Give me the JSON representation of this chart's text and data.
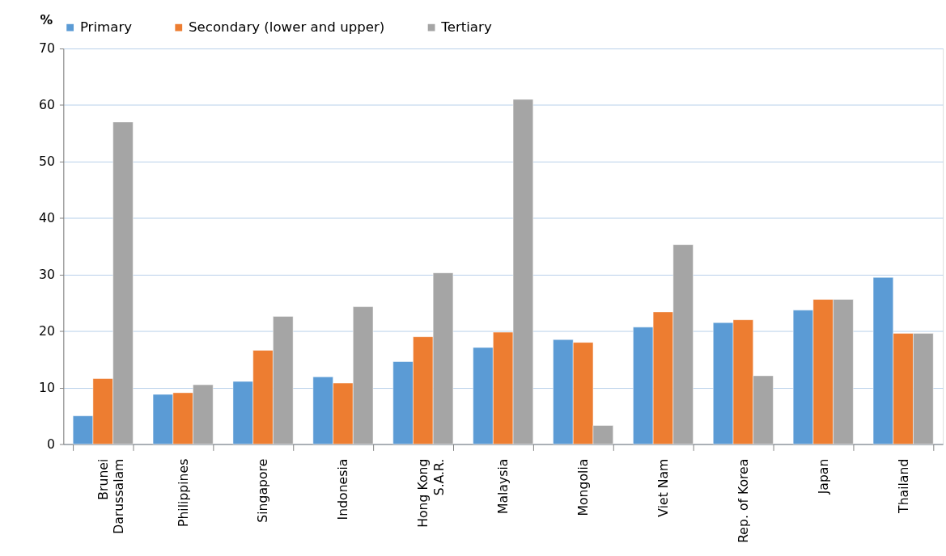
{
  "chart_data": {
    "type": "bar",
    "ylabel": "%",
    "categories": [
      "Brunei\nDarussalam",
      "Philippines",
      "Singapore",
      "Indonesia",
      "Hong Kong\nS.A.R.",
      "Malaysia",
      "Mongolia",
      "Viet Nam",
      "Rep. of Korea",
      "Japan",
      "Thailand"
    ],
    "series": [
      {
        "name": "Primary",
        "color": "#5b9bd5",
        "values": [
          5.0,
          8.8,
          11.1,
          11.9,
          14.6,
          17.1,
          18.5,
          20.7,
          21.5,
          23.7,
          29.5
        ]
      },
      {
        "name": "Secondary (lower and upper)",
        "color": "#ed7d31",
        "values": [
          11.6,
          9.1,
          16.6,
          10.8,
          19.0,
          19.8,
          18.0,
          23.4,
          22.0,
          25.6,
          19.6
        ]
      },
      {
        "name": "Tertiary",
        "color": "#a5a5a5",
        "values": [
          57.0,
          10.5,
          22.6,
          24.3,
          30.3,
          61.0,
          3.3,
          35.3,
          12.1,
          25.6,
          19.6
        ]
      }
    ],
    "ylim": [
      0,
      70
    ],
    "yticks": [
      0,
      10,
      20,
      30,
      40,
      50,
      60,
      70
    ],
    "grid": "y",
    "legend": "top"
  }
}
